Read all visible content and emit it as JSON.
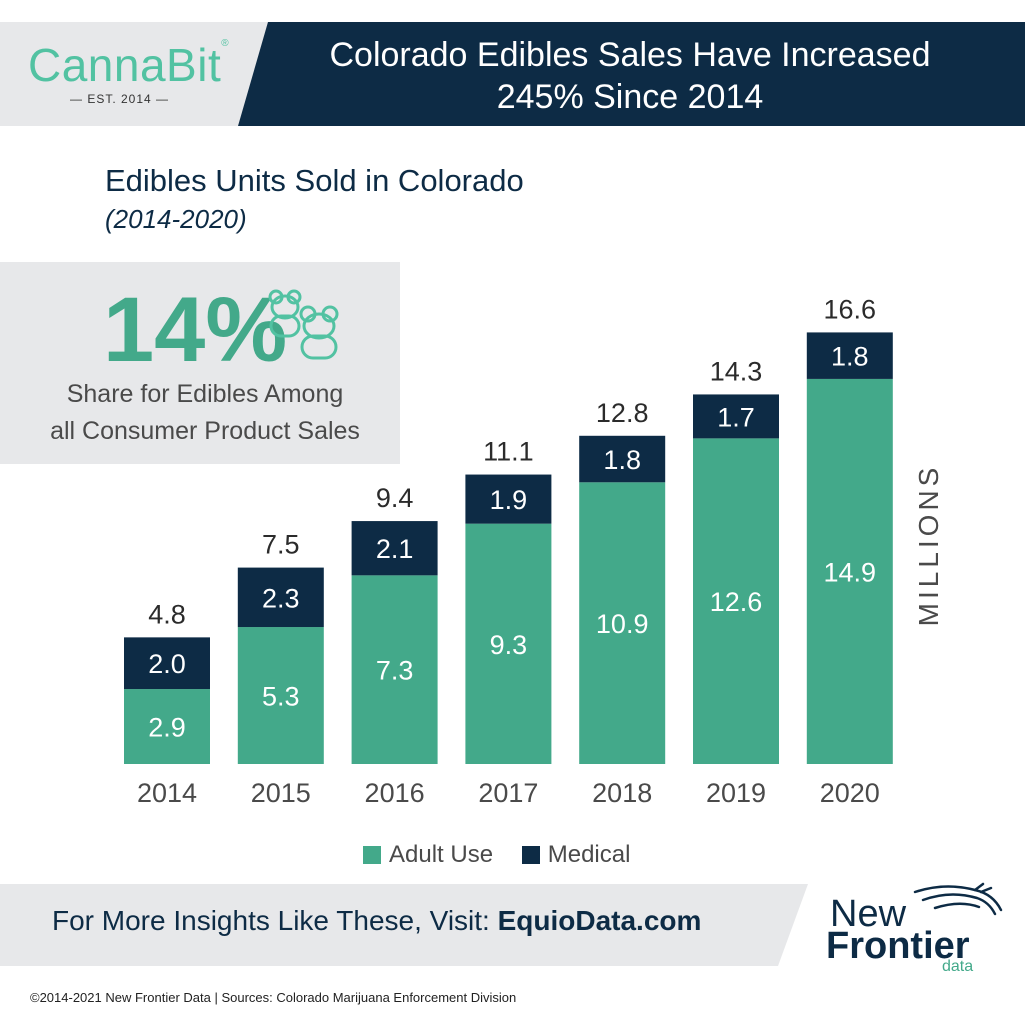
{
  "header": {
    "logo_name": "CannaBit",
    "logo_tagline": "— EST. 2014 —",
    "title_line1": "Colorado Edibles Sales Have Increased",
    "title_line2": "245% Since 2014",
    "colors": {
      "navy": "#0d2b45",
      "light_gray": "#e7e8ea",
      "teal": "#43a98a",
      "logo_teal": "#52c2a2"
    }
  },
  "stat": {
    "value": "14%",
    "caption_line1": "Share for Edibles Among",
    "caption_line2": "all Consumer Product Sales",
    "icon": "gummy-bears-icon"
  },
  "chart_data": {
    "type": "bar",
    "stacked": true,
    "title": "Edibles Units Sold in Colorado",
    "subtitle": "(2014-2020)",
    "ylabel": "MILLIONS",
    "xlabel": "",
    "categories": [
      "2014",
      "2015",
      "2016",
      "2017",
      "2018",
      "2019",
      "2020"
    ],
    "series": [
      {
        "name": "Adult Use",
        "color": "#43a98a",
        "values": [
          2.9,
          5.3,
          7.3,
          9.3,
          10.9,
          12.6,
          14.9
        ]
      },
      {
        "name": "Medical",
        "color": "#0d2b45",
        "values": [
          2.0,
          2.3,
          2.1,
          1.9,
          1.8,
          1.7,
          1.8
        ]
      }
    ],
    "totals": [
      4.8,
      7.5,
      9.4,
      11.1,
      12.8,
      14.3,
      16.6
    ],
    "ylim": [
      0,
      16.6
    ],
    "grid": false,
    "legend": "bottom"
  },
  "legend": {
    "adult_label": "Adult Use",
    "medical_label": "Medical"
  },
  "footer": {
    "cta_prefix": "For More Insights Like These, Visit: ",
    "cta_link": "EquioData.com",
    "brand_new": "New",
    "brand_frontier": "Frontier",
    "brand_data": "data",
    "copyright": "©2014-2021  New Frontier Data | Sources: Colorado Marijuana Enforcement Division"
  }
}
